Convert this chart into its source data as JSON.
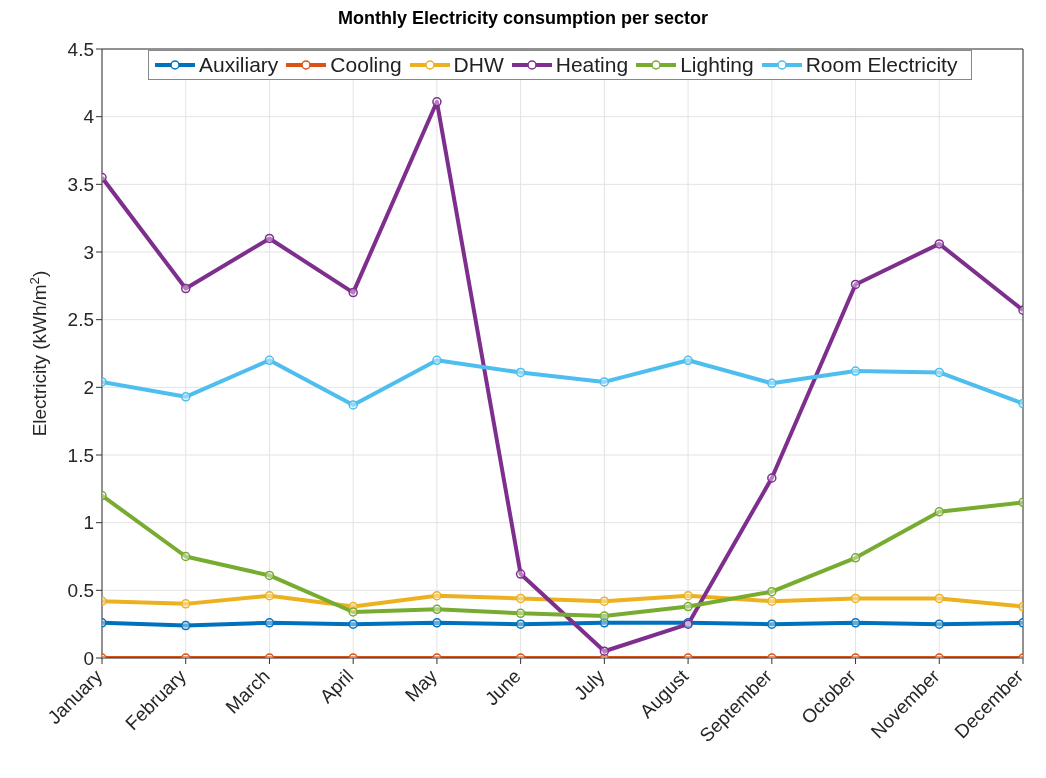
{
  "chart_data": {
    "type": "line",
    "title": "Monthly Electricity consumption per sector",
    "ylabel": "Electricity (kWh/m$^{2}$)",
    "categories": [
      "January",
      "February",
      "March",
      "April",
      "May",
      "June",
      "July",
      "August",
      "September",
      "October",
      "November",
      "December"
    ],
    "series": [
      {
        "name": "Auxiliary",
        "color": "#0072bd",
        "values": [
          0.26,
          0.24,
          0.26,
          0.25,
          0.26,
          0.25,
          0.26,
          0.26,
          0.25,
          0.26,
          0.25,
          0.26
        ]
      },
      {
        "name": "Cooling",
        "color": "#d95319",
        "values": [
          0,
          0,
          0,
          0,
          0,
          0,
          0,
          0,
          0,
          0,
          0,
          0
        ]
      },
      {
        "name": "DHW",
        "color": "#edb120",
        "values": [
          0.42,
          0.4,
          0.46,
          0.38,
          0.46,
          0.44,
          0.42,
          0.46,
          0.42,
          0.44,
          0.44,
          0.38
        ]
      },
      {
        "name": "Heating",
        "color": "#7e2f8e",
        "values": [
          3.55,
          2.73,
          3.1,
          2.7,
          4.11,
          0.62,
          0.05,
          0.25,
          1.33,
          2.76,
          3.06,
          2.57
        ]
      },
      {
        "name": "Lighting",
        "color": "#77ac30",
        "values": [
          1.2,
          0.75,
          0.61,
          0.34,
          0.36,
          0.33,
          0.31,
          0.38,
          0.49,
          0.74,
          1.08,
          1.15
        ]
      },
      {
        "name": "Room Electricity",
        "color": "#4dbeee",
        "values": [
          2.04,
          1.93,
          2.2,
          1.87,
          2.2,
          2.11,
          2.04,
          2.2,
          2.03,
          2.12,
          2.11,
          1.88
        ]
      }
    ],
    "ylim": [
      0,
      4.5
    ],
    "yticks": [
      0,
      0.5,
      1,
      1.5,
      2,
      2.5,
      3,
      3.5,
      4,
      4.5
    ],
    "grid": true,
    "legend": "top",
    "marker": "circle",
    "line_style": "solid"
  }
}
